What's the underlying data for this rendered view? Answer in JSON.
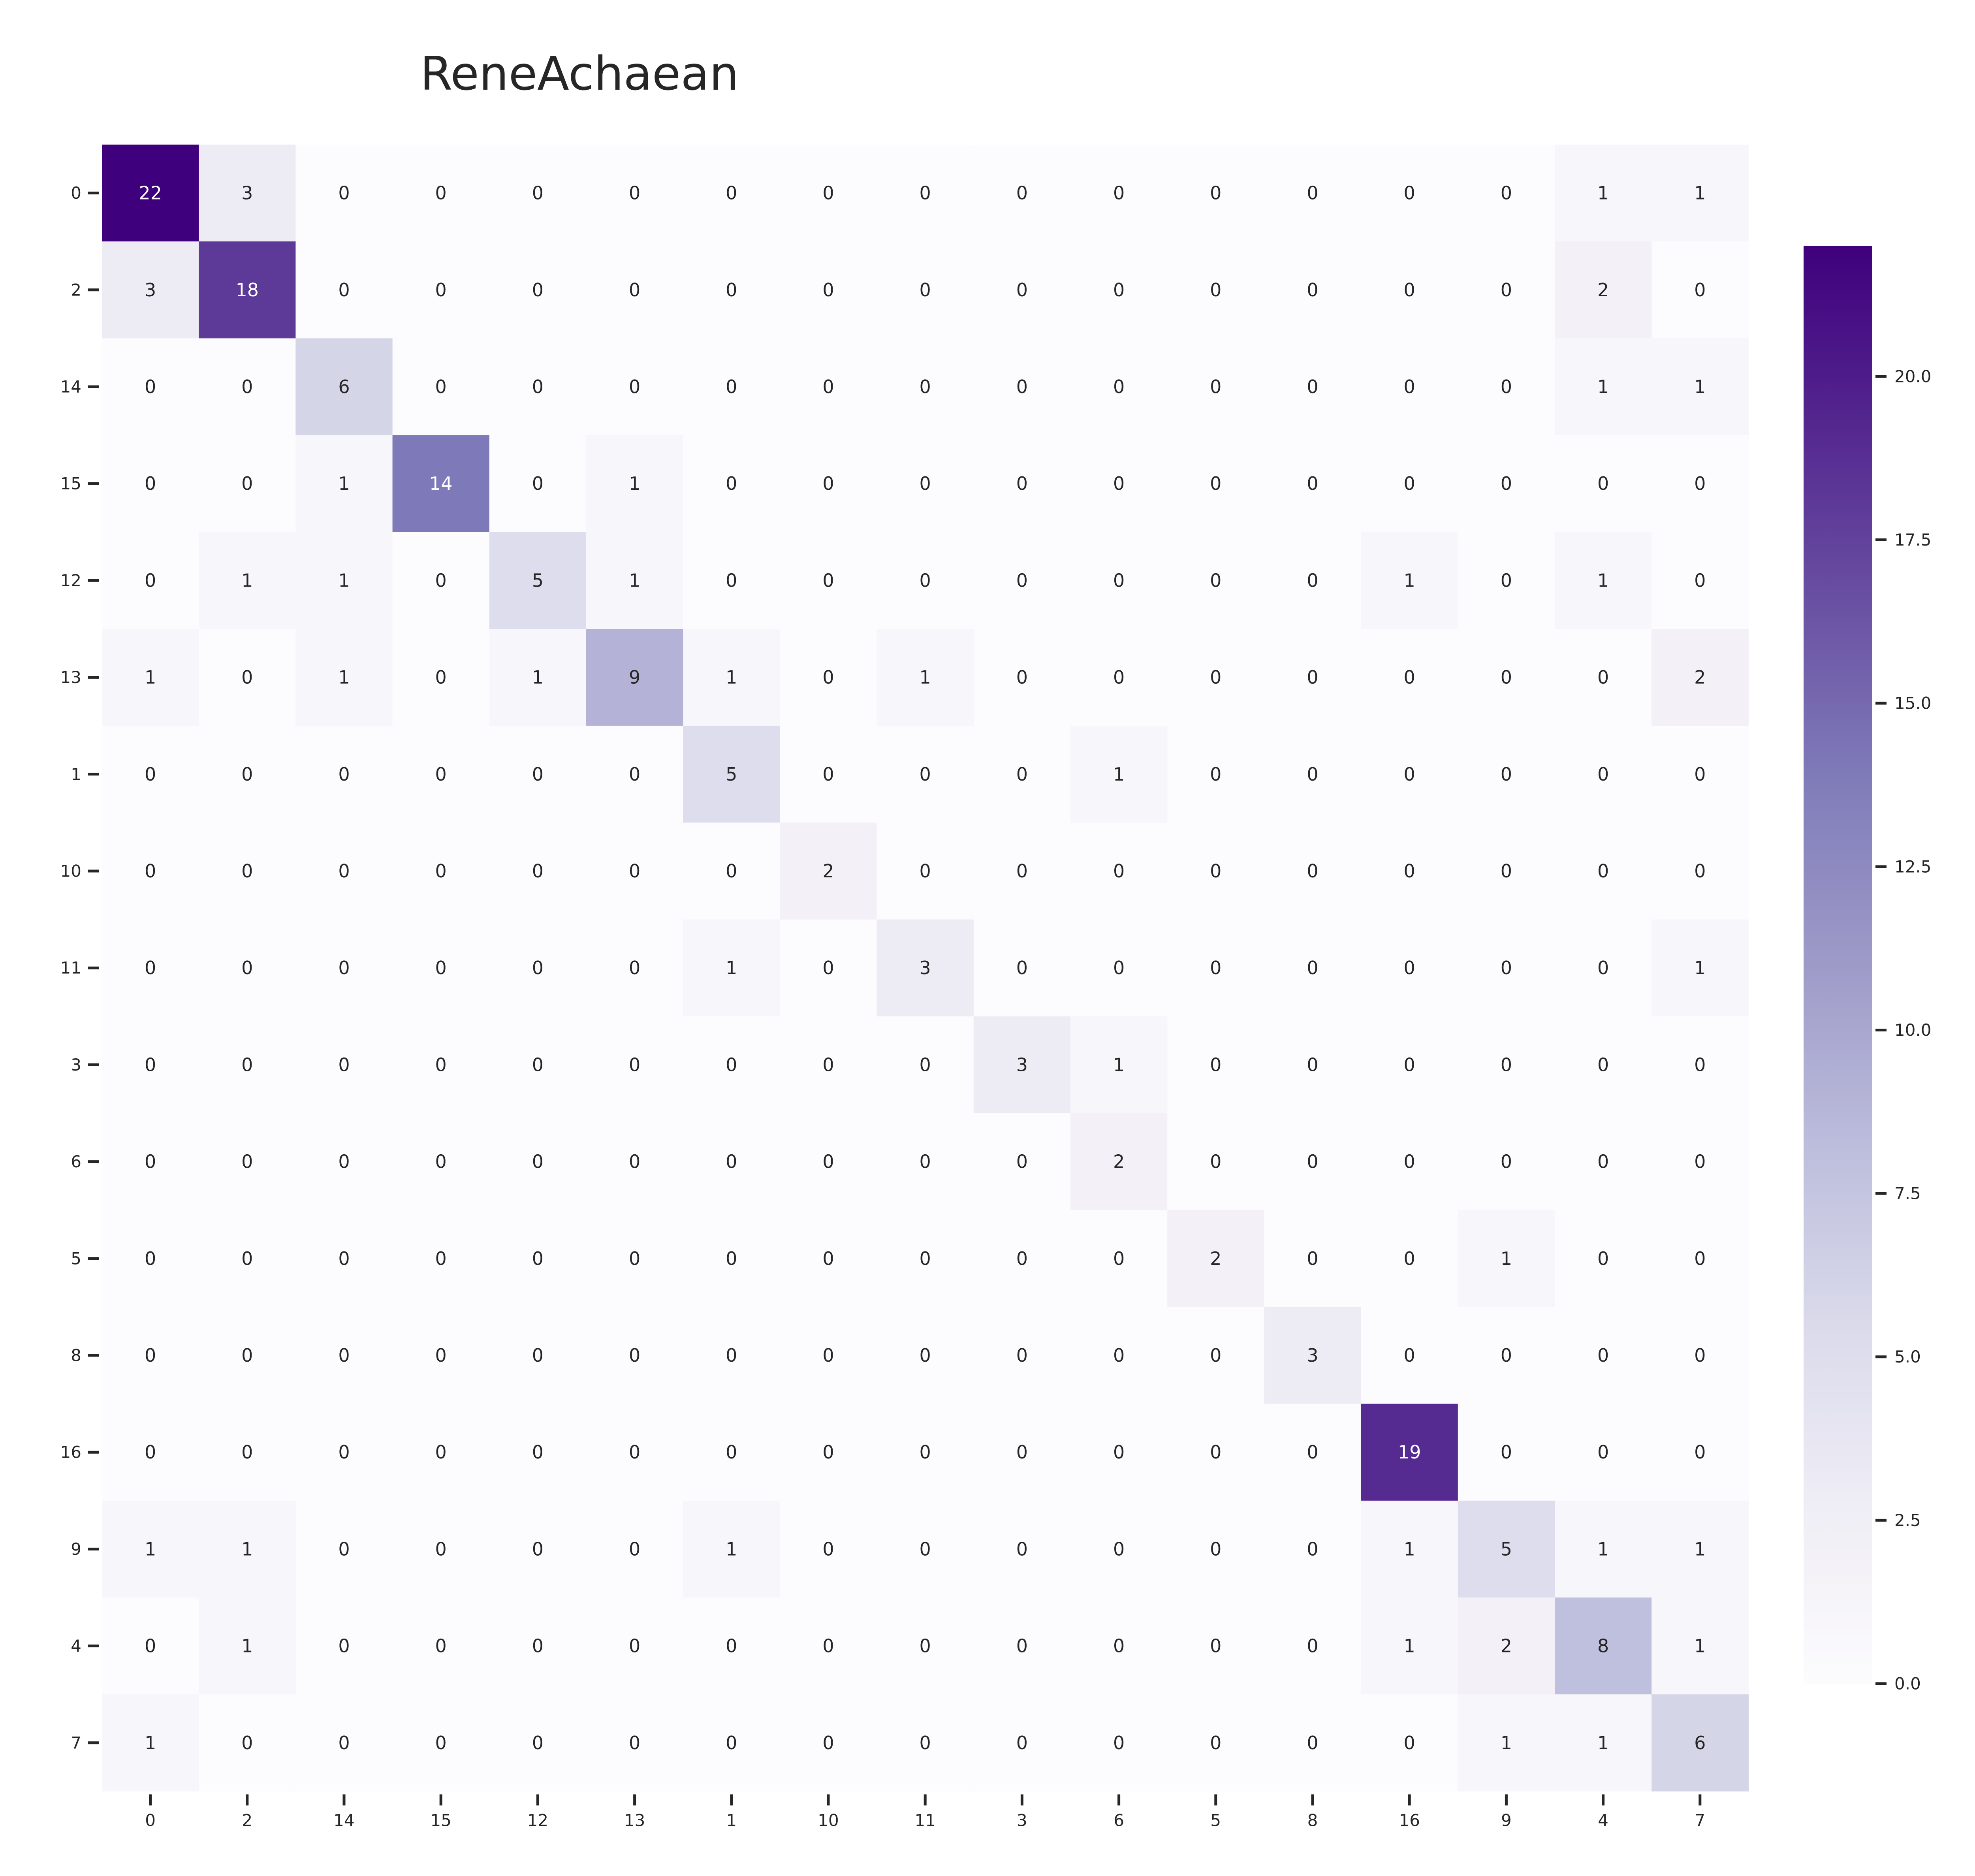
{
  "chart_data": {
    "type": "heatmap",
    "title": "ReneAchaean",
    "xlabel": "",
    "ylabel": "",
    "row_labels": [
      "0",
      "2",
      "14",
      "15",
      "12",
      "13",
      "1",
      "10",
      "11",
      "3",
      "6",
      "5",
      "8",
      "16",
      "9",
      "4",
      "7"
    ],
    "col_labels": [
      "0",
      "2",
      "14",
      "15",
      "12",
      "13",
      "1",
      "10",
      "11",
      "3",
      "6",
      "5",
      "8",
      "16",
      "9",
      "4",
      "7"
    ],
    "values": [
      [
        22,
        3,
        0,
        0,
        0,
        0,
        0,
        0,
        0,
        0,
        0,
        0,
        0,
        0,
        0,
        1,
        1
      ],
      [
        3,
        18,
        0,
        0,
        0,
        0,
        0,
        0,
        0,
        0,
        0,
        0,
        0,
        0,
        0,
        2,
        0
      ],
      [
        0,
        0,
        6,
        0,
        0,
        0,
        0,
        0,
        0,
        0,
        0,
        0,
        0,
        0,
        0,
        1,
        1
      ],
      [
        0,
        0,
        1,
        14,
        0,
        1,
        0,
        0,
        0,
        0,
        0,
        0,
        0,
        0,
        0,
        0,
        0
      ],
      [
        0,
        1,
        1,
        0,
        5,
        1,
        0,
        0,
        0,
        0,
        0,
        0,
        0,
        1,
        0,
        1,
        0
      ],
      [
        1,
        0,
        1,
        0,
        1,
        9,
        1,
        0,
        1,
        0,
        0,
        0,
        0,
        0,
        0,
        0,
        2
      ],
      [
        0,
        0,
        0,
        0,
        0,
        0,
        5,
        0,
        0,
        0,
        1,
        0,
        0,
        0,
        0,
        0,
        0
      ],
      [
        0,
        0,
        0,
        0,
        0,
        0,
        0,
        2,
        0,
        0,
        0,
        0,
        0,
        0,
        0,
        0,
        0
      ],
      [
        0,
        0,
        0,
        0,
        0,
        0,
        1,
        0,
        3,
        0,
        0,
        0,
        0,
        0,
        0,
        0,
        1
      ],
      [
        0,
        0,
        0,
        0,
        0,
        0,
        0,
        0,
        0,
        3,
        1,
        0,
        0,
        0,
        0,
        0,
        0
      ],
      [
        0,
        0,
        0,
        0,
        0,
        0,
        0,
        0,
        0,
        0,
        2,
        0,
        0,
        0,
        0,
        0,
        0
      ],
      [
        0,
        0,
        0,
        0,
        0,
        0,
        0,
        0,
        0,
        0,
        0,
        2,
        0,
        0,
        1,
        0,
        0
      ],
      [
        0,
        0,
        0,
        0,
        0,
        0,
        0,
        0,
        0,
        0,
        0,
        0,
        3,
        0,
        0,
        0,
        0
      ],
      [
        0,
        0,
        0,
        0,
        0,
        0,
        0,
        0,
        0,
        0,
        0,
        0,
        0,
        19,
        0,
        0,
        0
      ],
      [
        1,
        1,
        0,
        0,
        0,
        0,
        1,
        0,
        0,
        0,
        0,
        0,
        0,
        1,
        5,
        1,
        1
      ],
      [
        0,
        1,
        0,
        0,
        0,
        0,
        0,
        0,
        0,
        0,
        0,
        0,
        0,
        1,
        2,
        8,
        1
      ],
      [
        1,
        0,
        0,
        0,
        0,
        0,
        0,
        0,
        0,
        0,
        0,
        0,
        0,
        0,
        1,
        1,
        6
      ]
    ],
    "colorbar": {
      "vmin": 0,
      "vmax": 22,
      "ticks": [
        0,
        2.5,
        5,
        7.5,
        10,
        12.5,
        15,
        17.5,
        20
      ],
      "tick_labels": [
        "0.0",
        "2.5",
        "5.0",
        "7.5",
        "10.0",
        "12.5",
        "15.0",
        "17.5",
        "20.0"
      ],
      "colormap": "Purples"
    },
    "colors": {
      "low": "#fcfbfd",
      "high": "#3f007d",
      "text_dark": "#262626",
      "text_light": "#ffffff"
    },
    "grid": false
  }
}
